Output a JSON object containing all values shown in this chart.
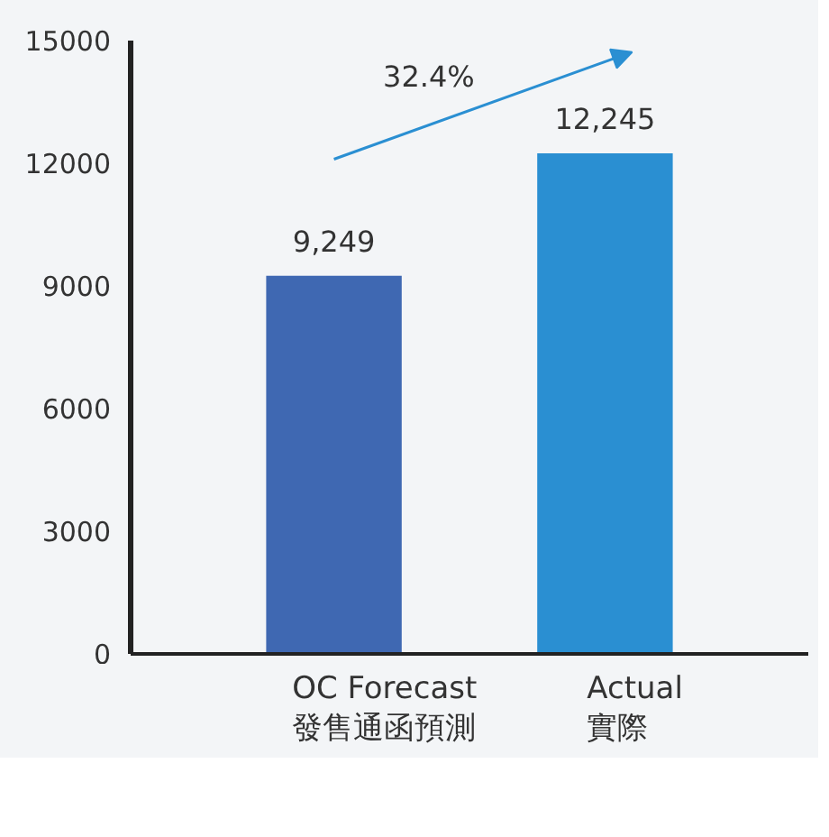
{
  "chart_data": {
    "type": "bar",
    "categories": [
      null,
      null
    ],
    "series": [
      {
        "name": "OC Forecast\n發售通函預測",
        "color": "#3f68b2",
        "values": [
          9249,
          null
        ],
        "value_labels": [
          "9,249",
          null
        ]
      },
      {
        "name": "Actual\n實際",
        "color": "#2a8fd2",
        "values": [
          null,
          12245
        ],
        "value_labels": [
          null,
          "12,245"
        ]
      }
    ],
    "ylim": [
      0,
      15000
    ],
    "yticks": [
      0,
      3000,
      6000,
      9000,
      12000,
      15000
    ],
    "annotations": [
      "32.4%"
    ],
    "grid": false,
    "legend": "bottom"
  }
}
